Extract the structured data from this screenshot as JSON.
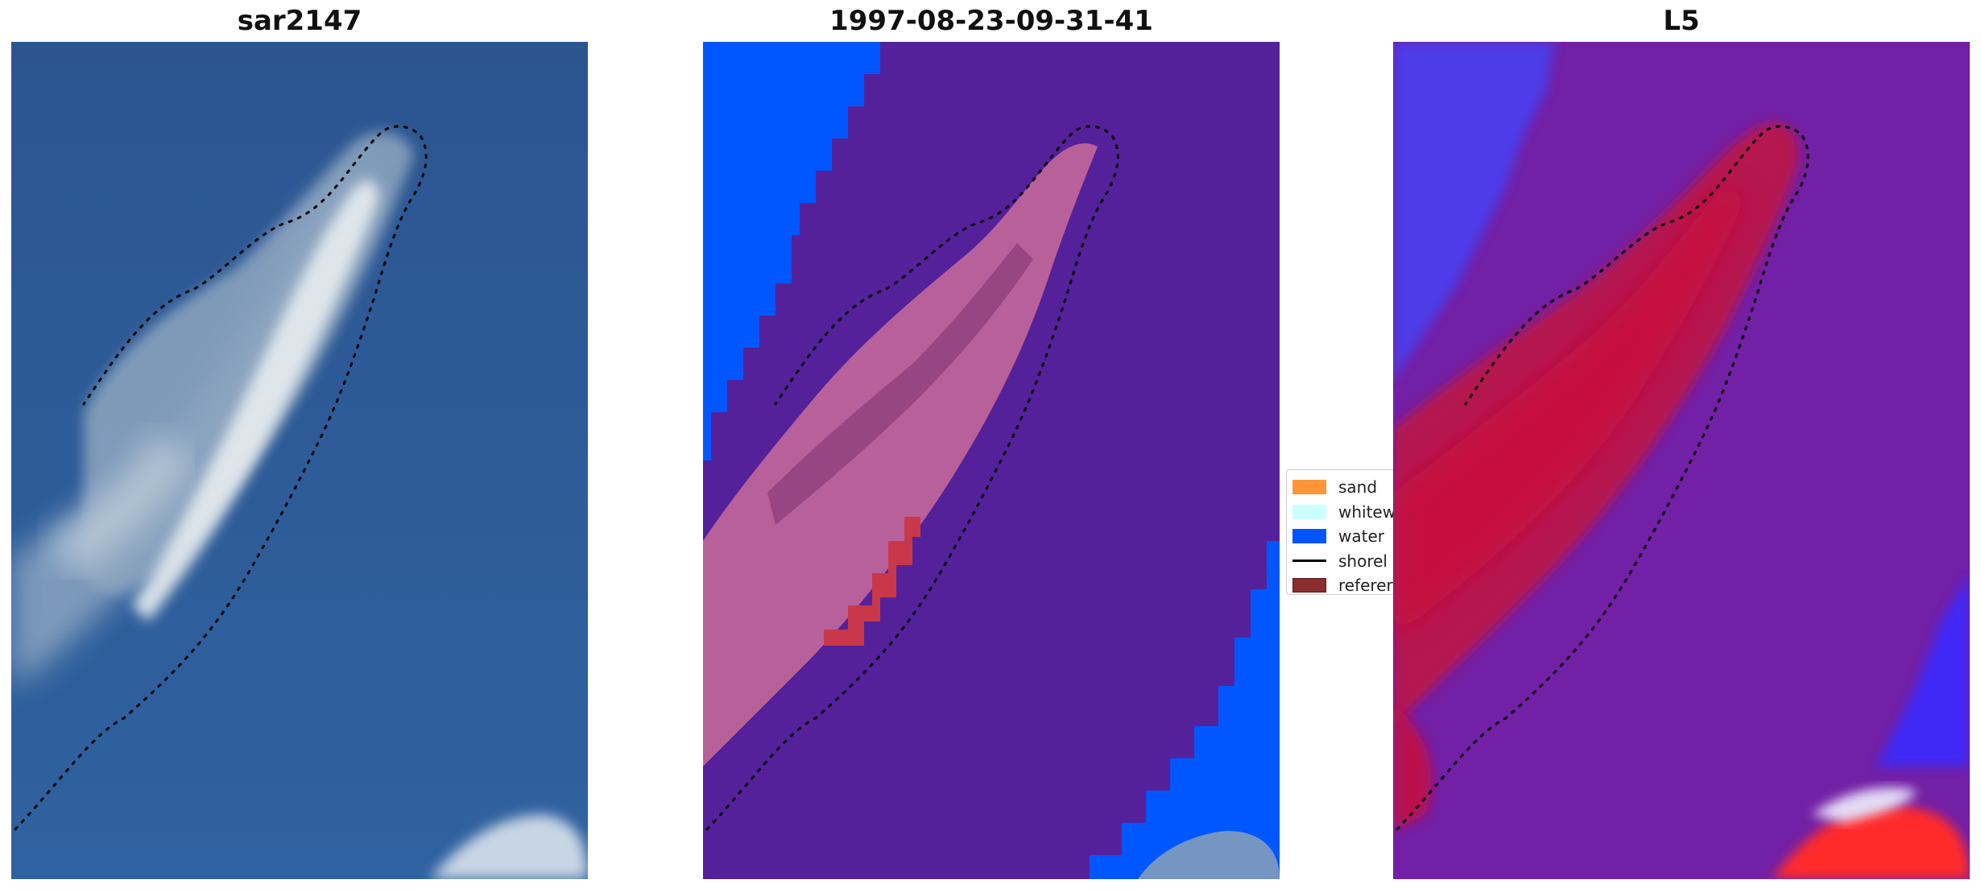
{
  "panels": [
    {
      "title": "sar2147"
    },
    {
      "title": "1997-08-23-09-31-41"
    },
    {
      "title": "L5"
    }
  ],
  "legend": {
    "items": [
      {
        "label": "sand",
        "color": "#ff9538"
      },
      {
        "label": "whitew",
        "color": "#ccffff"
      },
      {
        "label": "water",
        "color": "#0055ff"
      },
      {
        "label": "shorel",
        "color": "#000000"
      },
      {
        "label": "referer",
        "color": "#8b2d2d"
      }
    ]
  },
  "colors": {
    "ocean_rgb": "#2d5b96",
    "class_background": "#55219a",
    "class_water": "#0055ff",
    "class_island": "#b85c98",
    "class_reference": "#c8384a",
    "heat_background": "#7020a8",
    "heat_blue": "#3b30ff",
    "heat_red": "#c8083c"
  }
}
